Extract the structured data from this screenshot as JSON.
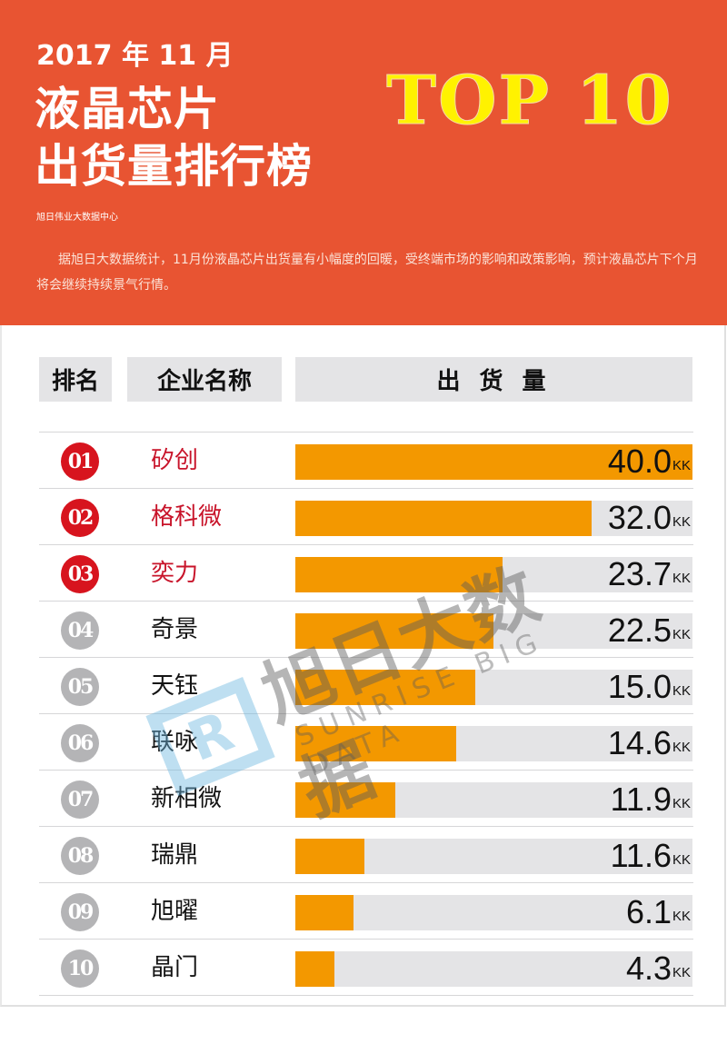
{
  "header": {
    "year_month": "2017 年 11 月",
    "title_line1": "液晶芯片",
    "title_line2": "出货量排行榜",
    "top10_label": "TOP 10",
    "source": "旭日伟业大数据中心",
    "description": "据旭日大数据统计，11月份液晶芯片出货量有小幅度的回暖，受终端市场的影响和政策影响，预计液晶芯片下个月将会继续持续景气行情。",
    "bg_color": "#E85432",
    "top10_color": "#FFF200"
  },
  "table": {
    "columns": [
      "排名",
      "企业名称",
      "出 货 量"
    ],
    "unit": "KK",
    "rows": [
      {
        "rank": "01",
        "company": "矽创",
        "value": "40.0",
        "highlight": true
      },
      {
        "rank": "02",
        "company": "格科微",
        "value": "32.0",
        "highlight": true
      },
      {
        "rank": "03",
        "company": "奕力",
        "value": "23.7",
        "highlight": true
      },
      {
        "rank": "04",
        "company": "奇景",
        "value": "22.5",
        "highlight": false
      },
      {
        "rank": "05",
        "company": "天钰",
        "value": "15.0",
        "highlight": false
      },
      {
        "rank": "06",
        "company": "联咏",
        "value": "14.6",
        "highlight": false
      },
      {
        "rank": "07",
        "company": "新相微",
        "value": "11.9",
        "highlight": false
      },
      {
        "rank": "08",
        "company": "瑞鼎",
        "value": "11.6",
        "highlight": false
      },
      {
        "rank": "09",
        "company": "旭曜",
        "value": "6.1",
        "highlight": false
      },
      {
        "rank": "10",
        "company": "晶门",
        "value": "4.3",
        "highlight": false
      }
    ],
    "colors": {
      "bar": "#F39800",
      "track": "#E4E4E6",
      "top_rank": "#D7141E",
      "other_rank": "#B4B4B6"
    }
  },
  "watermark": {
    "logo_icon": "sr-logo-icon",
    "cn_text": "旭日大数据",
    "en_text": "SUNRISE BIG DATA"
  },
  "chart_data": {
    "type": "bar",
    "orientation": "horizontal",
    "title": "2017年11月 液晶芯片出货量排行榜 TOP 10",
    "xlabel": "出货量 (KK)",
    "ylabel": "企业名称",
    "categories": [
      "矽创",
      "格科微",
      "奕力",
      "奇景",
      "天钰",
      "联咏",
      "新相微",
      "瑞鼎",
      "旭曜",
      "晶门"
    ],
    "values": [
      40.0,
      32.0,
      23.7,
      22.5,
      15.0,
      14.6,
      11.9,
      11.6,
      6.1,
      4.3
    ],
    "bar_fraction_of_track": [
      1.0,
      0.745,
      0.522,
      0.499,
      0.453,
      0.405,
      0.252,
      0.174,
      0.146,
      0.098
    ],
    "unit": "KK",
    "legend": null,
    "grid": false
  }
}
